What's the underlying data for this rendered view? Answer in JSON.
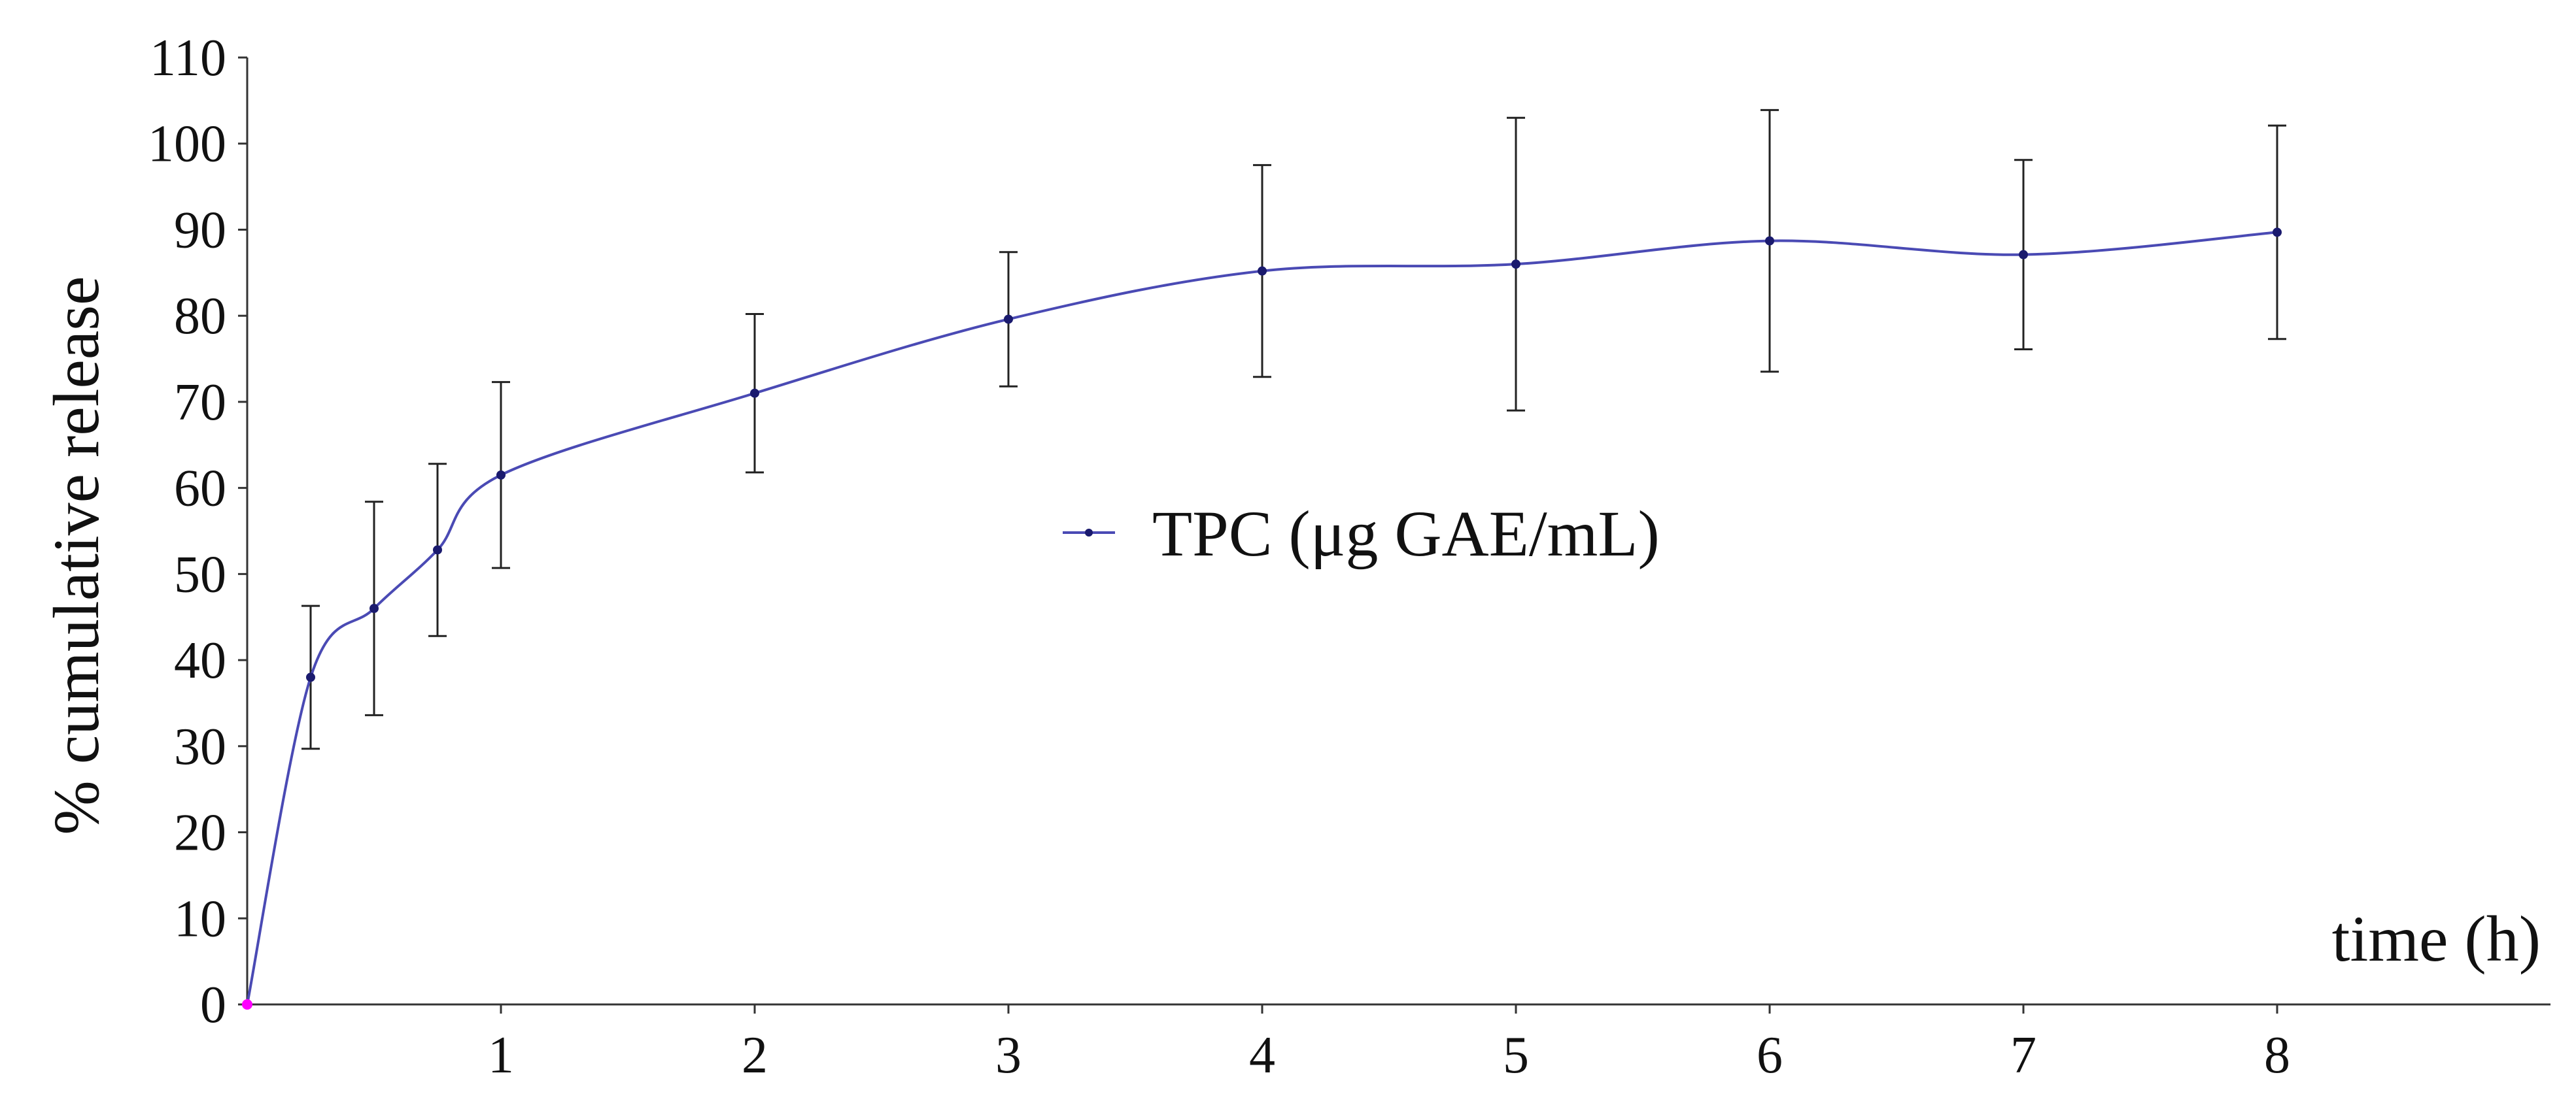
{
  "chart_data": {
    "type": "line",
    "title": "",
    "xlabel": "time (h)",
    "ylabel": "% cumulative release",
    "xlim": [
      0,
      9
    ],
    "ylim": [
      0,
      110
    ],
    "x_ticks": [
      1,
      2,
      3,
      4,
      5,
      6,
      7,
      8
    ],
    "y_ticks": [
      0,
      10,
      20,
      30,
      40,
      50,
      60,
      70,
      80,
      90,
      100,
      110
    ],
    "grid": false,
    "legend_position": "center",
    "series": [
      {
        "name": "TPC (μg GAE/mL)",
        "color": "#4a4ab4",
        "marker_color": "#1a1a6e",
        "origin_marker_color": "#ff00ff",
        "smooth": true,
        "x": [
          0,
          0.25,
          0.5,
          0.75,
          1,
          2,
          3,
          4,
          5,
          6,
          7,
          8
        ],
        "y": [
          0,
          38,
          46,
          52.8,
          61.5,
          71,
          79.6,
          85.2,
          86,
          88.7,
          87.1,
          89.7
        ],
        "error": [
          0,
          8.3,
          12.4,
          10,
          10.8,
          9.2,
          7.8,
          12.3,
          17,
          15.2,
          11,
          12.4
        ]
      }
    ]
  }
}
